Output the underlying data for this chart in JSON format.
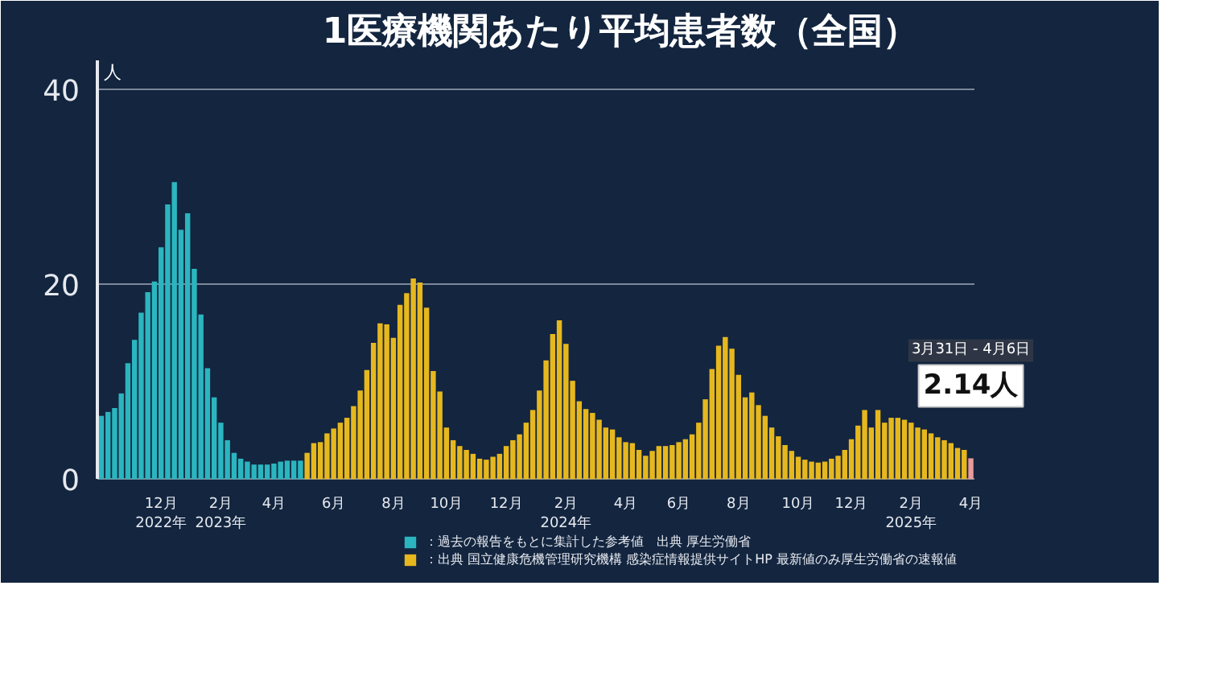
{
  "chart_data": {
    "type": "bar",
    "title": "1医療機関あたり平均患者数（全国）",
    "ylabel": "人",
    "categories": [
      null,
      null,
      null,
      null,
      null,
      null,
      null,
      null,
      null,
      "12月\n2022年",
      null,
      null,
      null,
      null,
      null,
      null,
      null,
      null,
      "2月\n2023年",
      null,
      null,
      null,
      null,
      null,
      null,
      null,
      "4月",
      null,
      null,
      null,
      null,
      null,
      null,
      null,
      null,
      "6月",
      null,
      null,
      null,
      null,
      null,
      null,
      null,
      null,
      "8月",
      null,
      null,
      null,
      null,
      null,
      null,
      null,
      "10月",
      null,
      null,
      null,
      null,
      null,
      null,
      null,
      null,
      "12月",
      null,
      null,
      null,
      null,
      null,
      null,
      null,
      null,
      "2月\n2024年",
      null,
      null,
      null,
      null,
      null,
      null,
      null,
      null,
      "4月",
      null,
      null,
      null,
      null,
      null,
      null,
      null,
      "6月",
      null,
      null,
      null,
      null,
      null,
      null,
      null,
      null,
      "8月",
      null,
      null,
      null,
      null,
      null,
      null,
      null,
      null,
      "10月",
      null,
      null,
      null,
      null,
      null,
      null,
      null,
      "12月",
      null,
      null,
      null,
      null,
      null,
      null,
      null,
      null,
      "2月\n2025年",
      null,
      null,
      null,
      null,
      null,
      null,
      null,
      null,
      "4月"
    ],
    "series": [
      {
        "name": "：過去の報告をもとに集計した参考値　出典 厚生労働省",
        "color": "#2bb5bf",
        "values": [
          6.5,
          6.9,
          7.3,
          8.8,
          11.9,
          14.3,
          17.1,
          19.2,
          20.3,
          23.8,
          28.2,
          30.5,
          25.6,
          27.3,
          21.6,
          16.9,
          11.4,
          8.4,
          5.8,
          4.0,
          2.7,
          2.1,
          1.8,
          1.5,
          1.5,
          1.5,
          1.6,
          1.8,
          1.9,
          1.9,
          1.9,
          null,
          null,
          null,
          null,
          null,
          null,
          null,
          null,
          null,
          null,
          null,
          null,
          null,
          null,
          null,
          null,
          null,
          null,
          null,
          null,
          null,
          null,
          null,
          null,
          null,
          null,
          null,
          null,
          null,
          null,
          null,
          null,
          null,
          null,
          null,
          null,
          null,
          null,
          null,
          null,
          null,
          null,
          null,
          null,
          null,
          null,
          null,
          null,
          null,
          null,
          null,
          null,
          null,
          null,
          null,
          null,
          null,
          null,
          null,
          null,
          null,
          null,
          null,
          null,
          null,
          null,
          null,
          null,
          null,
          null,
          null,
          null,
          null,
          null,
          null,
          null,
          null,
          null,
          null,
          null,
          null,
          null,
          null,
          null,
          null,
          null,
          null,
          null,
          null,
          null,
          null,
          null,
          null,
          null,
          null,
          null,
          null,
          null,
          null,
          null,
          null
        ]
      },
      {
        "name": "：出典 国立健康危機管理研究機構 感染症情報提供サイトHP 最新値のみ厚生労働省の速報値",
        "color": "#e6b81e",
        "values": [
          null,
          null,
          null,
          null,
          null,
          null,
          null,
          null,
          null,
          null,
          null,
          null,
          null,
          null,
          null,
          null,
          null,
          null,
          null,
          null,
          null,
          null,
          null,
          null,
          null,
          null,
          null,
          null,
          null,
          null,
          null,
          2.7,
          3.7,
          3.8,
          4.7,
          5.2,
          5.8,
          6.3,
          7.5,
          9.1,
          11.2,
          14.0,
          16.0,
          15.9,
          14.5,
          17.9,
          19.1,
          20.6,
          20.2,
          17.6,
          11.1,
          9.0,
          5.3,
          4.0,
          3.4,
          3.0,
          2.6,
          2.1,
          2.0,
          2.3,
          2.6,
          3.4,
          4.0,
          4.6,
          5.8,
          7.1,
          9.1,
          12.2,
          14.9,
          16.3,
          13.9,
          10.1,
          8.0,
          7.2,
          6.8,
          6.1,
          5.3,
          5.1,
          4.3,
          3.8,
          3.7,
          3.0,
          2.4,
          2.9,
          3.4,
          3.4,
          3.5,
          3.8,
          4.1,
          4.6,
          5.8,
          8.2,
          11.3,
          13.7,
          14.6,
          13.4,
          10.7,
          8.4,
          8.9,
          7.6,
          6.5,
          5.3,
          4.4,
          3.5,
          2.9,
          2.3,
          2.0,
          1.8,
          1.7,
          1.8,
          2.1,
          2.4,
          3.0,
          4.1,
          5.5,
          7.1,
          5.3,
          7.1,
          5.8,
          6.3,
          6.3,
          6.1,
          5.8,
          5.3,
          5.1,
          4.7,
          4.3,
          4.0,
          3.7,
          3.2,
          3.0,
          null
        ]
      },
      {
        "color": "#e99a9a",
        "values": [
          null,
          null,
          null,
          null,
          null,
          null,
          null,
          null,
          null,
          null,
          null,
          null,
          null,
          null,
          null,
          null,
          null,
          null,
          null,
          null,
          null,
          null,
          null,
          null,
          null,
          null,
          null,
          null,
          null,
          null,
          null,
          null,
          null,
          null,
          null,
          null,
          null,
          null,
          null,
          null,
          null,
          null,
          null,
          null,
          null,
          null,
          null,
          null,
          null,
          null,
          null,
          null,
          null,
          null,
          null,
          null,
          null,
          null,
          null,
          null,
          null,
          null,
          null,
          null,
          null,
          null,
          null,
          null,
          null,
          null,
          null,
          null,
          null,
          null,
          null,
          null,
          null,
          null,
          null,
          null,
          null,
          null,
          null,
          null,
          null,
          null,
          null,
          null,
          null,
          null,
          null,
          null,
          null,
          null,
          null,
          null,
          null,
          null,
          null,
          null,
          null,
          null,
          null,
          null,
          null,
          null,
          null,
          null,
          null,
          null,
          null,
          null,
          null,
          null,
          null,
          null,
          null,
          null,
          null,
          null,
          null,
          null,
          null,
          null,
          null,
          null,
          null,
          null,
          null,
          null,
          null,
          2.14
        ],
        "value_labels": [
          null,
          null,
          null,
          null,
          null,
          null,
          null,
          null,
          null,
          null,
          null,
          null,
          null,
          null,
          null,
          null,
          null,
          null,
          null,
          null,
          null,
          null,
          null,
          null,
          null,
          null,
          null,
          null,
          null,
          null,
          null,
          null,
          null,
          null,
          null,
          null,
          null,
          null,
          null,
          null,
          null,
          null,
          null,
          null,
          null,
          null,
          null,
          null,
          null,
          null,
          null,
          null,
          null,
          null,
          null,
          null,
          null,
          null,
          null,
          null,
          null,
          null,
          null,
          null,
          null,
          null,
          null,
          null,
          null,
          null,
          null,
          null,
          null,
          null,
          null,
          null,
          null,
          null,
          null,
          null,
          null,
          null,
          null,
          null,
          null,
          null,
          null,
          null,
          null,
          null,
          null,
          null,
          null,
          null,
          null,
          null,
          null,
          null,
          null,
          null,
          null,
          null,
          null,
          null,
          null,
          null,
          null,
          null,
          null,
          null,
          null,
          null,
          null,
          null,
          null,
          null,
          null,
          null,
          null,
          null,
          null,
          null,
          null,
          null,
          null,
          null,
          null,
          null,
          null,
          null,
          null,
          "2.14人"
        ]
      }
    ],
    "annotations": [
      "3月31日 - 4月6日"
    ],
    "ylim": [
      0,
      43
    ],
    "yticks": [
      0,
      20,
      40
    ],
    "grid": "y",
    "legend": "bottom"
  }
}
